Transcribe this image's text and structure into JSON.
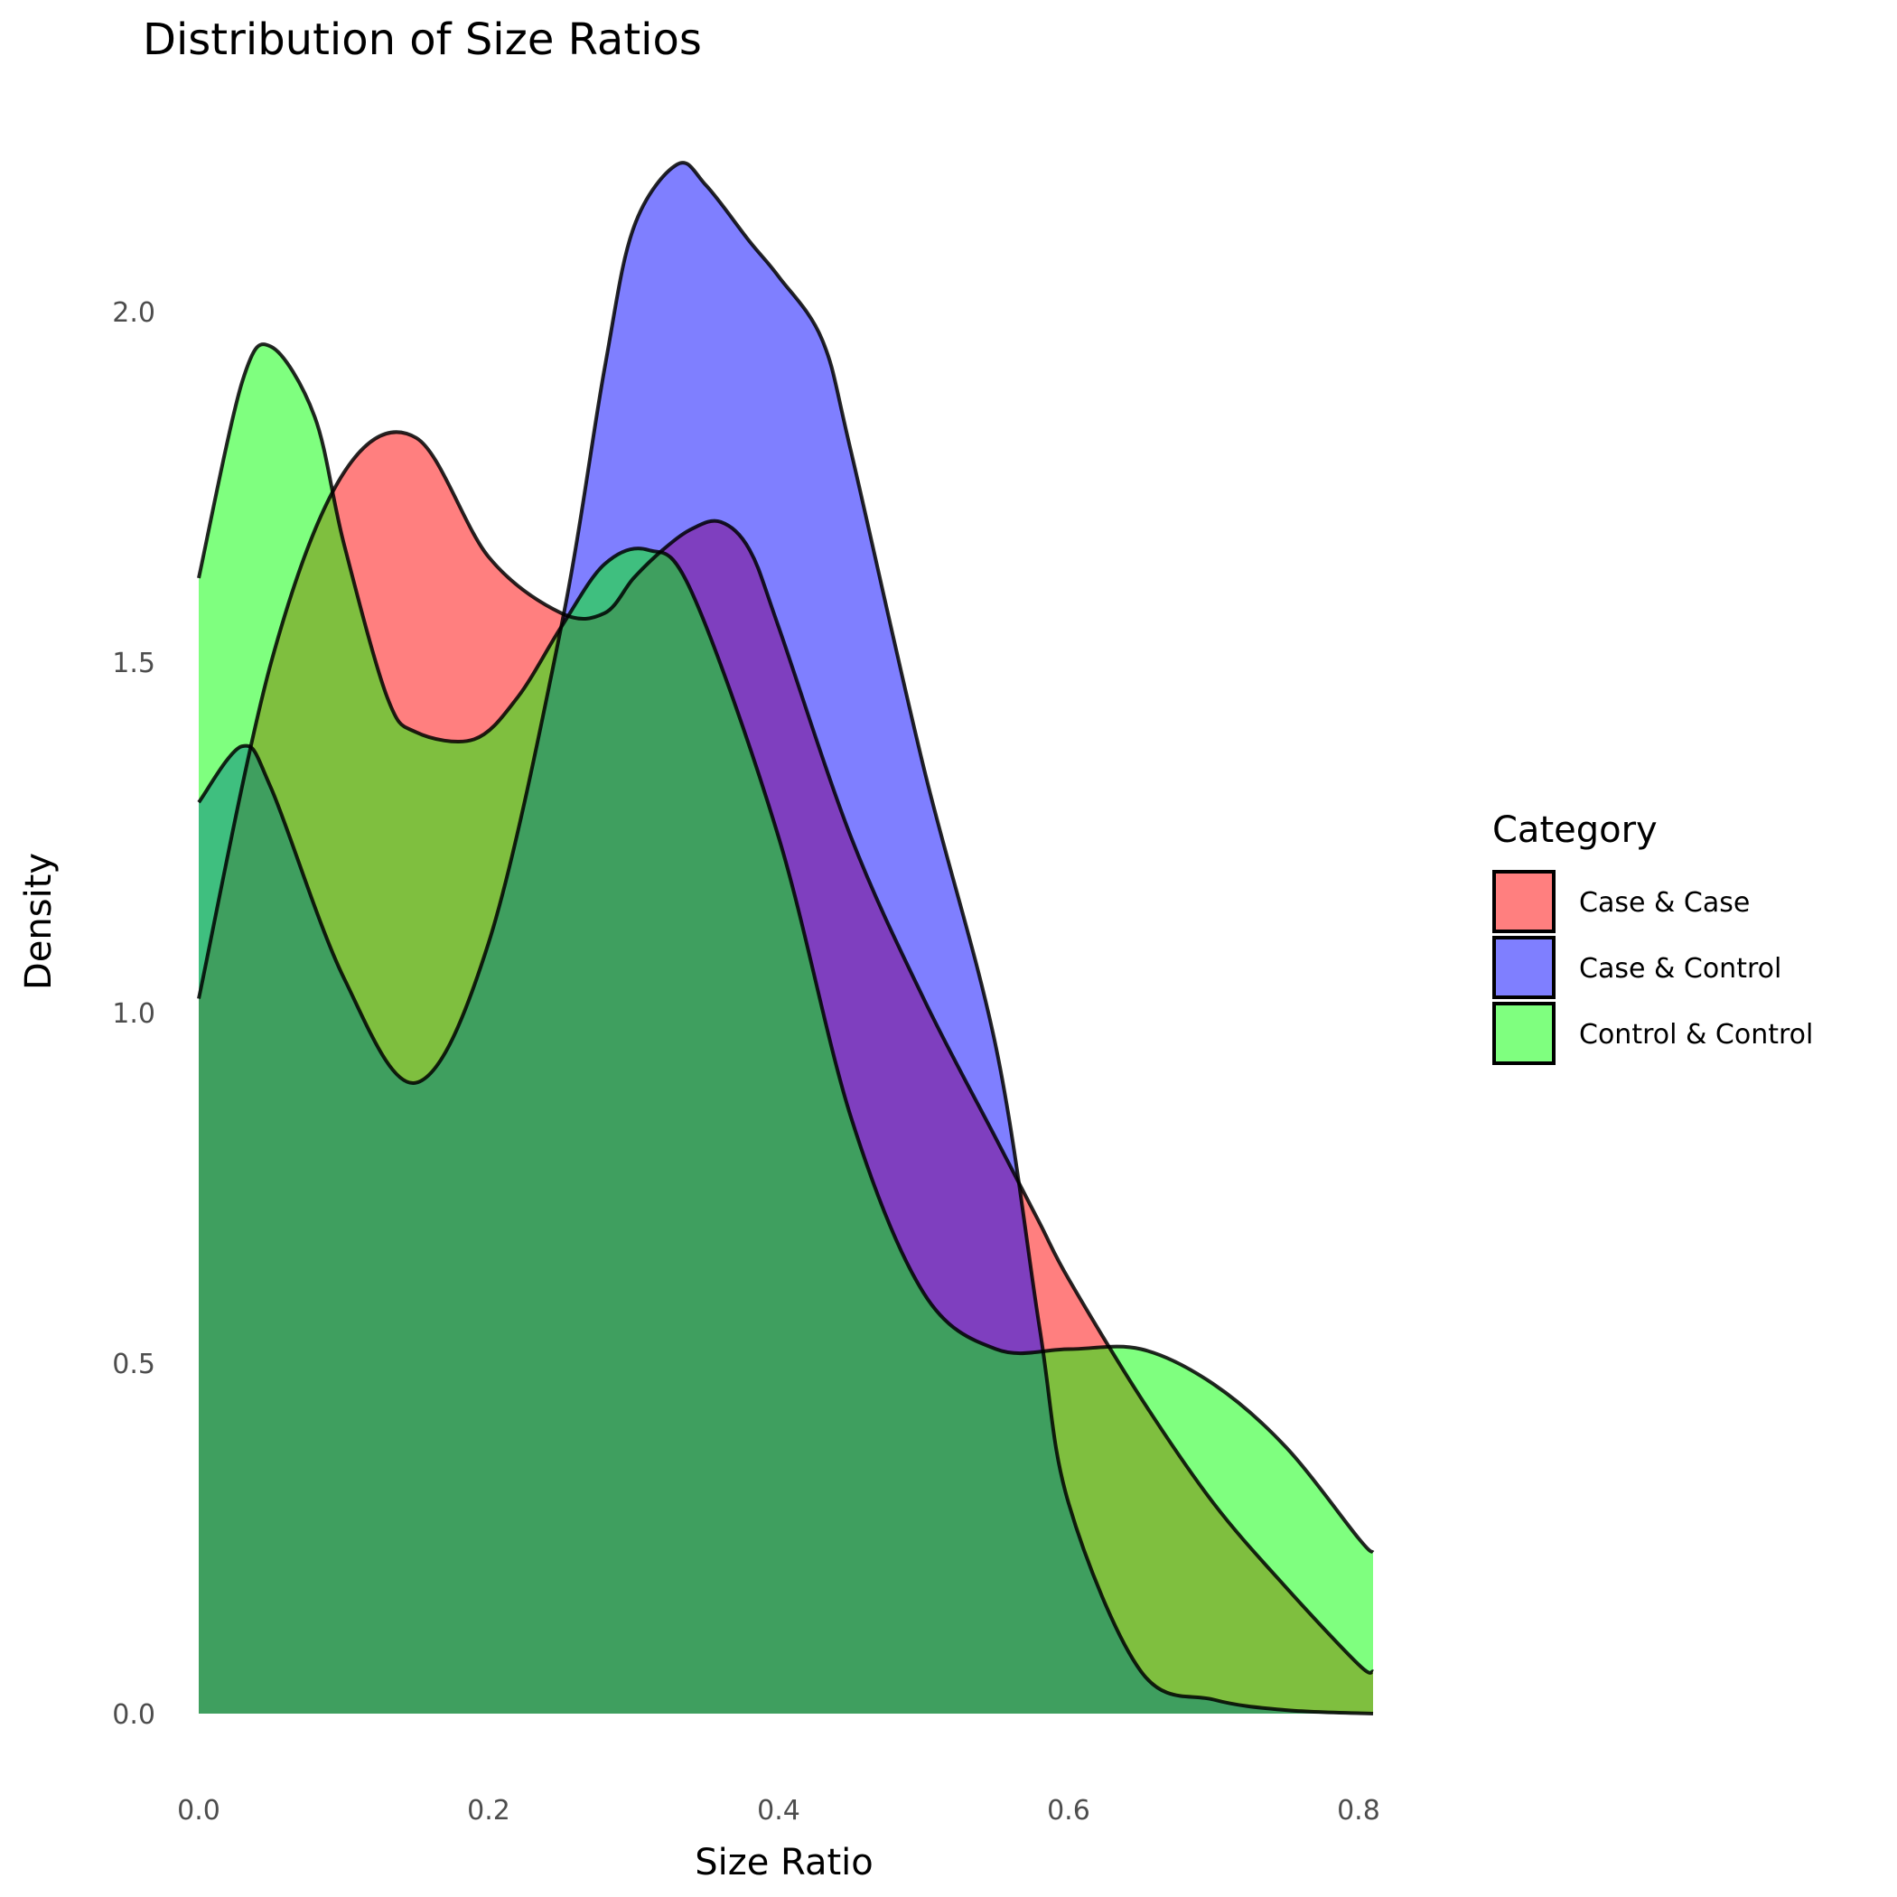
{
  "chart_data": {
    "type": "area",
    "title": "Distribution of Size Ratios",
    "xlabel": "Size Ratio",
    "ylabel": "Density",
    "xlim": [
      0,
      0.81
    ],
    "ylim": [
      0,
      2.3
    ],
    "x_ticks": [
      "0.0",
      "0.2",
      "0.4",
      "0.6",
      "0.8"
    ],
    "y_ticks": [
      "0.0",
      "0.5",
      "1.0",
      "1.5",
      "2.0"
    ],
    "grid": false,
    "legend": {
      "title": "Category",
      "placement": "right"
    },
    "series": [
      {
        "name": "Case & Case",
        "color": "#FF0000",
        "points": [
          [
            0.0,
            1.02
          ],
          [
            0.05,
            1.5
          ],
          [
            0.1,
            1.77
          ],
          [
            0.15,
            1.82
          ],
          [
            0.2,
            1.65
          ],
          [
            0.25,
            1.57
          ],
          [
            0.28,
            1.57
          ],
          [
            0.3,
            1.62
          ],
          [
            0.32,
            1.66
          ],
          [
            0.34,
            1.69
          ],
          [
            0.36,
            1.7
          ],
          [
            0.38,
            1.66
          ],
          [
            0.4,
            1.55
          ],
          [
            0.45,
            1.25
          ],
          [
            0.5,
            1.02
          ],
          [
            0.55,
            0.82
          ],
          [
            0.58,
            0.7
          ],
          [
            0.6,
            0.62
          ],
          [
            0.65,
            0.45
          ],
          [
            0.7,
            0.3
          ],
          [
            0.75,
            0.18
          ],
          [
            0.8,
            0.07
          ],
          [
            0.81,
            0.06
          ]
        ]
      },
      {
        "name": "Case & Control",
        "color": "#0000FF",
        "points": [
          [
            0.0,
            1.3
          ],
          [
            0.03,
            1.38
          ],
          [
            0.05,
            1.32
          ],
          [
            0.1,
            1.05
          ],
          [
            0.15,
            0.9
          ],
          [
            0.2,
            1.1
          ],
          [
            0.25,
            1.55
          ],
          [
            0.28,
            1.92
          ],
          [
            0.3,
            2.12
          ],
          [
            0.33,
            2.21
          ],
          [
            0.35,
            2.18
          ],
          [
            0.38,
            2.1
          ],
          [
            0.4,
            2.05
          ],
          [
            0.43,
            1.96
          ],
          [
            0.45,
            1.8
          ],
          [
            0.5,
            1.35
          ],
          [
            0.55,
            0.95
          ],
          [
            0.58,
            0.55
          ],
          [
            0.6,
            0.3
          ],
          [
            0.65,
            0.06
          ],
          [
            0.7,
            0.02
          ],
          [
            0.75,
            0.005
          ],
          [
            0.81,
            0.0
          ]
        ]
      },
      {
        "name": "Control & Control",
        "color": "#00FF00",
        "points": [
          [
            0.0,
            1.62
          ],
          [
            0.03,
            1.9
          ],
          [
            0.05,
            1.95
          ],
          [
            0.08,
            1.85
          ],
          [
            0.1,
            1.67
          ],
          [
            0.13,
            1.45
          ],
          [
            0.15,
            1.4
          ],
          [
            0.19,
            1.39
          ],
          [
            0.22,
            1.45
          ],
          [
            0.25,
            1.55
          ],
          [
            0.28,
            1.64
          ],
          [
            0.31,
            1.66
          ],
          [
            0.34,
            1.6
          ],
          [
            0.4,
            1.25
          ],
          [
            0.45,
            0.85
          ],
          [
            0.5,
            0.6
          ],
          [
            0.55,
            0.52
          ],
          [
            0.6,
            0.52
          ],
          [
            0.65,
            0.52
          ],
          [
            0.7,
            0.47
          ],
          [
            0.75,
            0.38
          ],
          [
            0.8,
            0.25
          ],
          [
            0.81,
            0.23
          ]
        ]
      }
    ]
  }
}
